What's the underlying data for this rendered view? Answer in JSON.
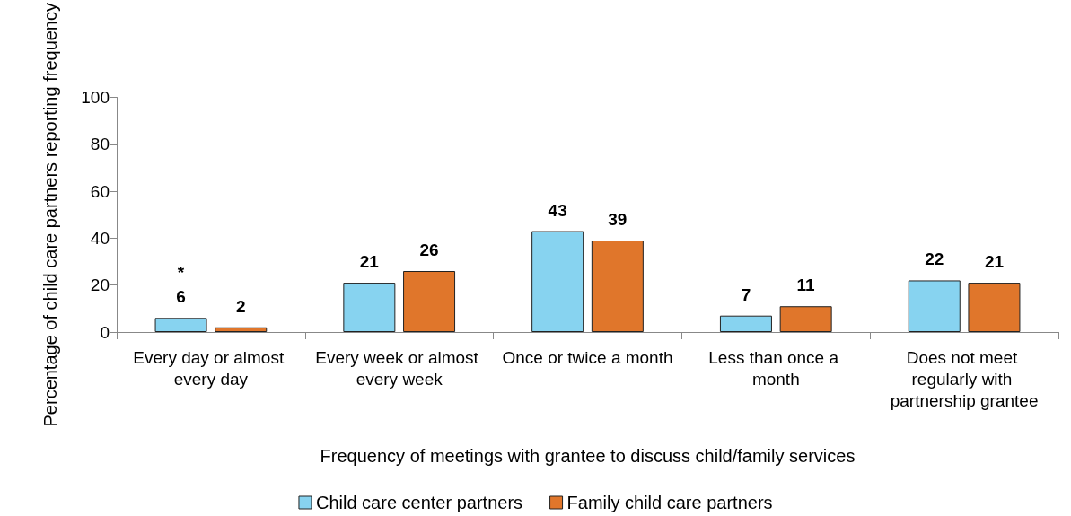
{
  "chart_data": {
    "type": "bar",
    "categories": [
      "Every day or almost every day",
      "Every week or almost every week",
      "Once or twice a month",
      "Less than once a month",
      "Does not meet regularly with partnership grantee"
    ],
    "series": [
      {
        "name": "Child care center partners",
        "color": "#87d3f0",
        "values": [
          6,
          21,
          43,
          7,
          22
        ]
      },
      {
        "name": "Family child care partners",
        "color": "#e0762b",
        "values": [
          2,
          26,
          39,
          11,
          21
        ]
      }
    ],
    "xlabel": "Frequency of meetings with grantee to discuss child/family services",
    "ylabel": "Percentage of child care partners reporting frequency",
    "ylim": [
      0,
      100
    ],
    "yticks": [
      0,
      20,
      40,
      60,
      80,
      100
    ],
    "annotations": [
      {
        "text": "*",
        "x": "Every day or almost every day",
        "y": 6
      }
    ],
    "data_labels": true,
    "grid": false,
    "legend": "bottom"
  }
}
